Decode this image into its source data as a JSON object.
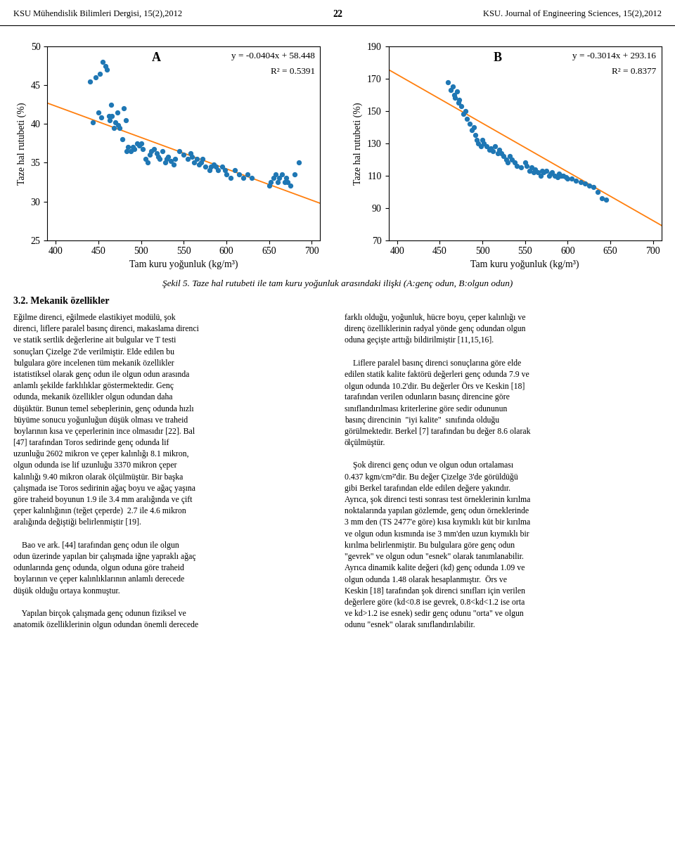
{
  "chart_data": [
    {
      "type": "scatter",
      "xlabel": "Tam kuru yoğunluk (kg/m³)",
      "ylabel": "Taze hal rutubeti (%)",
      "annotations": [
        "A",
        "y = -0.0404x + 58.448",
        "R² = 0.5391"
      ],
      "xlim": [
        390,
        710
      ],
      "ylim": [
        25,
        50
      ],
      "xticks": [
        400,
        450,
        500,
        550,
        600,
        650,
        700
      ],
      "yticks": [
        25,
        30,
        35,
        40,
        45,
        50
      ],
      "grid": false,
      "series": [
        {
          "type": "scatter",
          "x": [
            440,
            443,
            447,
            450,
            452,
            453,
            455,
            458,
            460,
            462,
            463,
            465,
            466,
            468,
            470,
            472,
            473,
            475,
            478,
            480,
            482,
            483,
            485,
            488,
            490,
            492,
            495,
            498,
            500,
            502,
            505,
            508,
            510,
            512,
            515,
            518,
            520,
            522,
            525,
            528,
            530,
            532,
            535,
            538,
            540,
            545,
            550,
            555,
            558,
            560,
            562,
            565,
            568,
            570,
            572,
            575,
            580,
            582,
            585,
            588,
            590,
            595,
            598,
            600,
            605,
            610,
            615,
            620,
            625,
            630,
            650,
            652,
            655,
            658,
            660,
            662,
            665,
            668,
            670,
            672,
            675,
            680,
            685
          ],
          "values": [
            45.5,
            40.2,
            46.0,
            41.5,
            46.5,
            40.8,
            48.0,
            47.5,
            47.0,
            41.0,
            40.5,
            42.5,
            41.0,
            39.5,
            40.2,
            41.5,
            39.8,
            39.5,
            38.0,
            42.0,
            40.5,
            36.5,
            37.0,
            36.5,
            37.0,
            36.8,
            37.5,
            37.2,
            37.5,
            36.8,
            35.5,
            35.0,
            36.0,
            36.5,
            36.8,
            36.2,
            35.8,
            35.5,
            36.5,
            35.0,
            35.5,
            35.8,
            35.2,
            34.8,
            35.5,
            36.5,
            36.0,
            35.5,
            36.2,
            35.8,
            35.0,
            35.5,
            34.8,
            35.0,
            35.5,
            34.5,
            34.0,
            34.5,
            34.8,
            34.5,
            34.0,
            34.5,
            34.0,
            33.5,
            33.0,
            34.0,
            33.5,
            33.0,
            33.5,
            33.0,
            32.0,
            32.5,
            33.0,
            33.5,
            32.5,
            33.0,
            33.5,
            32.5,
            33.0,
            32.5,
            32.0,
            33.5,
            35.0
          ]
        },
        {
          "type": "line",
          "x": [
            390,
            710
          ],
          "values": [
            42.692,
            29.764
          ]
        }
      ]
    },
    {
      "type": "scatter",
      "xlabel": "Tam kuru yoğunluk (kg/m³)",
      "ylabel": "Taze hal rutubeti (%)",
      "annotations": [
        "B",
        "y = -0.3014x + 293.16",
        "R² = 0.8377"
      ],
      "xlim": [
        390,
        710
      ],
      "ylim": [
        70,
        190
      ],
      "xticks": [
        400,
        450,
        500,
        550,
        600,
        650,
        700
      ],
      "yticks": [
        70,
        90,
        110,
        130,
        150,
        170,
        190
      ],
      "grid": false,
      "series": [
        {
          "type": "scatter",
          "x": [
            460,
            463,
            465,
            467,
            468,
            470,
            472,
            473,
            475,
            478,
            480,
            482,
            485,
            488,
            490,
            492,
            493,
            495,
            498,
            500,
            502,
            505,
            508,
            510,
            512,
            515,
            518,
            520,
            522,
            525,
            528,
            530,
            532,
            535,
            538,
            540,
            545,
            550,
            552,
            555,
            558,
            560,
            562,
            565,
            568,
            570,
            572,
            575,
            578,
            580,
            582,
            585,
            588,
            590,
            592,
            595,
            598,
            600,
            605,
            610,
            615,
            620,
            625,
            630,
            635,
            640,
            645
          ],
          "values": [
            168,
            163,
            165,
            160,
            158,
            162,
            155,
            157,
            153,
            148,
            150,
            145,
            142,
            138,
            140,
            135,
            132,
            130,
            128,
            132,
            130,
            128,
            126,
            127,
            125,
            128,
            124,
            126,
            124,
            122,
            120,
            118,
            122,
            120,
            118,
            116,
            115,
            118,
            116,
            113,
            115,
            112,
            114,
            112,
            110,
            113,
            112,
            113,
            110,
            111,
            112,
            110,
            109,
            111,
            110,
            110,
            109,
            108,
            108,
            107,
            106,
            105,
            104,
            103,
            100,
            96,
            95
          ]
        },
        {
          "type": "line",
          "x": [
            390,
            710
          ],
          "values": [
            175.614,
            79.166
          ]
        }
      ]
    }
  ],
  "header": [
    "KSU Mühendislik Bilimleri Dergisi, 15(2),2012",
    "22",
    "KSU. Journal of Engineering Sciences, 15(2),2012"
  ],
  "caption": "Şekil 5. Taze hal rutubeti ile tam kuru yoğunluk arasındaki ilişki (A:genç odun, B:olgun odun)",
  "heading": "3.2. Mekanik özellikler",
  "body_left": [
    [
      "Eğilme direnci, eğilmede elastikiyet modülü, şok",
      "direnci, liflere paralel basınç direnci, makaslama direnci",
      "ve statik sertlik değerlerine ait bulgular ve T testi",
      "sonuçları Çizelge 2'de verilmiştir. Elde edilen bu",
      "bulgulara göre incelenen tüm mekanik özellikler",
      "istatistiksel olarak genç odun ile olgun odun arasında",
      "anlamlı şekilde farklılıklar göstermektedir. Genç",
      "odunda, mekanik özellikler olgun odundan daha",
      "düşüktür. Bunun temel sebeplerinin, genç odunda hızlı",
      "büyüme sonucu yoğunluğun düşük olması ve traheid",
      "boylarının kısa ve çeperlerinin ince olmasıdır [22]. Bal",
      "[47] tarafından Toros sedirinde genç odunda lif",
      "uzunluğu 2602 mikron ve çeper kalınlığı 8.1 mikron,",
      "olgun odunda ise lif uzunluğu 3370 mikron çeper",
      "kalınlığı 9.40 mikron olarak ölçülmüştür. Bir başka",
      "çalışmada ise Toros sedirinin ağaç boyu ve ağaç yaşına",
      "göre traheid boyunun 1.9 ile 3.4 mm aralığında ve çift",
      "çeper kalınlığının (teğet çeperde)  2.7 ile 4.6 mikron",
      "aralığında değiştiği belirlenmiştir [19]."
    ],
    [
      "    Bao ve ark. [44] tarafından genç odun ile olgun",
      "odun üzerinde yapılan bir çalışmada iğne yapraklı ağaç",
      "odunlarında genç odunda, olgun oduna göre traheid",
      "boylarının ve çeper kalınlıklarının anlamlı derecede",
      "düşük olduğu ortaya konmuştur."
    ],
    [
      "    Yapılan birçok çalışmada genç odunun fiziksel ve",
      "anatomik özelliklerinin olgun odundan önemli derecede"
    ]
  ],
  "body_right": [
    [
      "farklı olduğu, yoğunluk, hücre boyu, çeper kalınlığı ve",
      "direnç özelliklerinin radyal yönde genç odundan olgun",
      "oduna geçişte arttığı bildirilmiştir [11,15,16]."
    ],
    [
      "    Liflere paralel basınç direnci sonuçlarına göre elde",
      "edilen statik kalite faktörü değerleri genç odunda 7.9 ve",
      "olgun odunda 10.2'dir. Bu değerler Örs ve Keskin [18]",
      "tarafından verilen odunların basınç direncine göre",
      "sınıflandırılması kriterlerine göre sedir odununun",
      "basınç direncinin  \"iyi kalite\"  sınıfında olduğu",
      "görülmektedir. Berkel [7] tarafından bu değer 8.6 olarak",
      "ölçülmüştür."
    ],
    [
      "    Şok direnci genç odun ve olgun odun ortalaması",
      "0.437 kgm/cm²'dir. Bu değer Çizelge 3'de görüldüğü",
      "gibi Berkel tarafından elde edilen değere yakındır.",
      "Ayrıca, şok direnci testi sonrası test örneklerinin kırılma",
      "noktalarında yapılan gözlemde, genç odun örneklerinde",
      "3 mm den (TS 2477'e göre) kısa kıymıklı küt bir kırılma",
      "ve olgun odun kısmında ise 3 mm'den uzun kıymıklı bir",
      "kırılma belirlenmiştir. Bu bulgulara göre genç odun",
      "\"gevrek\" ve olgun odun \"esnek\" olarak tanımlanabilir.",
      "Ayrıca dinamik kalite değeri (kd) genç odunda 1.09 ve",
      "olgun odunda 1.48 olarak hesaplanmıştır.  Örs ve",
      "Keskin [18] tarafından şok direnci sınıfları için verilen",
      "değerlere göre (kd<0.8 ise gevrek, 0.8<kd<1.2 ise orta",
      "ve kd>1.2 ise esnek) sedir genç odunu \"orta\" ve olgun",
      "odunu \"esnek\" olarak sınıflandırılabilir."
    ]
  ]
}
